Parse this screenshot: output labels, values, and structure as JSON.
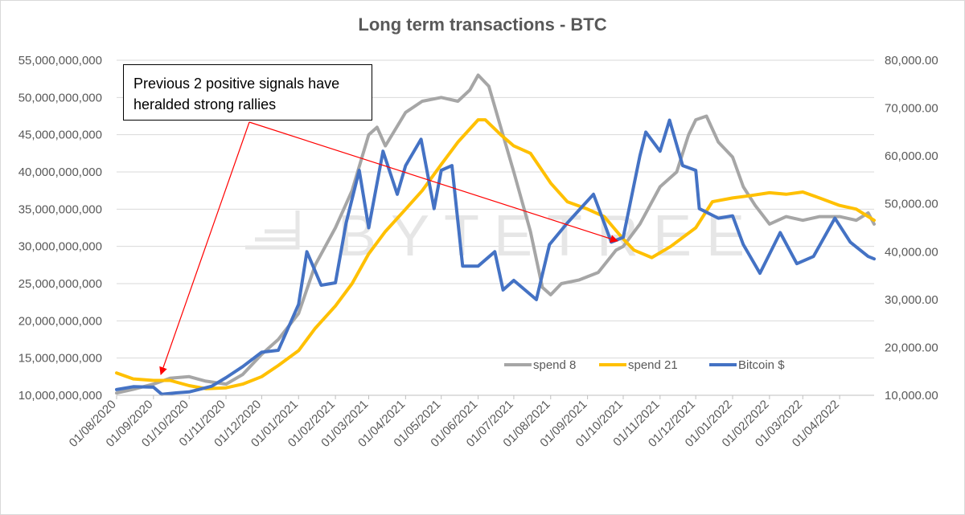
{
  "chart_data": {
    "type": "line",
    "title": "Long term transactions - BTC",
    "watermark": "BYTETREE",
    "annotation": "Previous 2 positive signals have heralded strong rallies",
    "y_left": {
      "ylim": [
        10000000000,
        55000000000
      ],
      "ticks": [
        "10,000,000,000",
        "15,000,000,000",
        "20,000,000,000",
        "25,000,000,000",
        "30,000,000,000",
        "35,000,000,000",
        "40,000,000,000",
        "45,000,000,000",
        "50,000,000,000",
        "55,000,000,000"
      ]
    },
    "y_right": {
      "ylim": [
        10000,
        80000
      ],
      "ticks": [
        "10,000.00",
        "20,000.00",
        "30,000.00",
        "40,000.00",
        "50,000.00",
        "60,000.00",
        "70,000.00",
        "80,000.00"
      ]
    },
    "x": {
      "range": [
        "2020-08-01",
        "2022-04-30"
      ],
      "ticks": [
        "01/08/2020",
        "01/09/2020",
        "01/10/2020",
        "01/11/2020",
        "01/12/2020",
        "01/01/2021",
        "01/02/2021",
        "01/03/2021",
        "01/04/2021",
        "01/05/2021",
        "01/06/2021",
        "01/07/2021",
        "01/08/2021",
        "01/09/2021",
        "01/10/2021",
        "01/11/2021",
        "01/12/2021",
        "01/01/2022",
        "01/02/2022",
        "01/03/2022",
        "01/04/2022"
      ]
    },
    "series": [
      {
        "name": "spend 8",
        "color": "#a6a6a6",
        "axis": "left",
        "points": [
          [
            "2020-08-01",
            10300000000.0
          ],
          [
            "2020-08-15",
            10800000000.0
          ],
          [
            "2020-09-01",
            11500000000.0
          ],
          [
            "2020-09-15",
            12300000000.0
          ],
          [
            "2020-10-01",
            12500000000.0
          ],
          [
            "2020-10-15",
            11900000000.0
          ],
          [
            "2020-11-01",
            11500000000.0
          ],
          [
            "2020-11-15",
            12800000000.0
          ],
          [
            "2020-12-01",
            15500000000.0
          ],
          [
            "2020-12-15",
            17500000000.0
          ],
          [
            "2021-01-01",
            21000000000.0
          ],
          [
            "2021-01-15",
            27500000000.0
          ],
          [
            "2021-02-01",
            32500000000.0
          ],
          [
            "2021-02-15",
            37500000000.0
          ],
          [
            "2021-03-01",
            45000000000.0
          ],
          [
            "2021-03-08",
            46000000000.0
          ],
          [
            "2021-03-15",
            43500000000.0
          ],
          [
            "2021-04-01",
            48000000000.0
          ],
          [
            "2021-04-15",
            49500000000.0
          ],
          [
            "2021-05-01",
            50000000000.0
          ],
          [
            "2021-05-15",
            49500000000.0
          ],
          [
            "2021-05-25",
            51000000000.0
          ],
          [
            "2021-06-01",
            53000000000.0
          ],
          [
            "2021-06-10",
            51500000000.0
          ],
          [
            "2021-06-20",
            46000000000.0
          ],
          [
            "2021-07-01",
            40000000000.0
          ],
          [
            "2021-07-15",
            32000000000.0
          ],
          [
            "2021-07-25",
            24500000000.0
          ],
          [
            "2021-08-01",
            23500000000.0
          ],
          [
            "2021-08-10",
            25000000000.0
          ],
          [
            "2021-08-25",
            25500000000.0
          ],
          [
            "2021-09-10",
            26500000000.0
          ],
          [
            "2021-09-25",
            29500000000.0
          ],
          [
            "2021-10-01",
            30000000000.0
          ],
          [
            "2021-10-15",
            33000000000.0
          ],
          [
            "2021-11-01",
            38000000000.0
          ],
          [
            "2021-11-15",
            40000000000.0
          ],
          [
            "2021-11-25",
            45000000000.0
          ],
          [
            "2021-12-01",
            47000000000.0
          ],
          [
            "2021-12-10",
            47500000000.0
          ],
          [
            "2021-12-20",
            44000000000.0
          ],
          [
            "2022-01-01",
            42000000000.0
          ],
          [
            "2022-01-10",
            38000000000.0
          ],
          [
            "2022-01-20",
            35500000000.0
          ],
          [
            "2022-02-01",
            33000000000.0
          ],
          [
            "2022-02-15",
            34000000000.0
          ],
          [
            "2022-03-01",
            33500000000.0
          ],
          [
            "2022-03-15",
            34000000000.0
          ],
          [
            "2022-04-01",
            34000000000.0
          ],
          [
            "2022-04-15",
            33500000000.0
          ],
          [
            "2022-04-25",
            34500000000.0
          ],
          [
            "2022-04-30",
            33000000000.0
          ]
        ]
      },
      {
        "name": "spend 21",
        "color": "#ffc000",
        "axis": "left",
        "points": [
          [
            "2020-08-01",
            13000000000.0
          ],
          [
            "2020-08-15",
            12200000000.0
          ],
          [
            "2020-09-01",
            12000000000.0
          ],
          [
            "2020-09-15",
            12000000000.0
          ],
          [
            "2020-10-01",
            11300000000.0
          ],
          [
            "2020-10-15",
            10900000000.0
          ],
          [
            "2020-11-01",
            11000000000.0
          ],
          [
            "2020-11-15",
            11500000000.0
          ],
          [
            "2020-12-01",
            12500000000.0
          ],
          [
            "2020-12-15",
            14000000000.0
          ],
          [
            "2021-01-01",
            16000000000.0
          ],
          [
            "2021-01-15",
            19000000000.0
          ],
          [
            "2021-02-01",
            22000000000.0
          ],
          [
            "2021-02-15",
            25000000000.0
          ],
          [
            "2021-03-01",
            29000000000.0
          ],
          [
            "2021-03-15",
            32000000000.0
          ],
          [
            "2021-04-01",
            35000000000.0
          ],
          [
            "2021-04-15",
            37500000000.0
          ],
          [
            "2021-05-01",
            41000000000.0
          ],
          [
            "2021-05-15",
            44000000000.0
          ],
          [
            "2021-06-01",
            47000000000.0
          ],
          [
            "2021-06-07",
            47000000000.0
          ],
          [
            "2021-06-20",
            45000000000.0
          ],
          [
            "2021-07-01",
            43500000000.0
          ],
          [
            "2021-07-15",
            42500000000.0
          ],
          [
            "2021-08-01",
            38500000000.0
          ],
          [
            "2021-08-15",
            36000000000.0
          ],
          [
            "2021-09-01",
            35000000000.0
          ],
          [
            "2021-09-15",
            34000000000.0
          ],
          [
            "2021-10-01",
            31000000000.0
          ],
          [
            "2021-10-10",
            29500000000.0
          ],
          [
            "2021-10-25",
            28500000000.0
          ],
          [
            "2021-11-10",
            30000000000.0
          ],
          [
            "2021-12-01",
            32500000000.0
          ],
          [
            "2021-12-15",
            36000000000.0
          ],
          [
            "2022-01-01",
            36500000000.0
          ],
          [
            "2022-01-15",
            36800000000.0
          ],
          [
            "2022-02-01",
            37200000000.0
          ],
          [
            "2022-02-15",
            37000000000.0
          ],
          [
            "2022-03-01",
            37300000000.0
          ],
          [
            "2022-03-15",
            36500000000.0
          ],
          [
            "2022-04-01",
            35500000000.0
          ],
          [
            "2022-04-15",
            35000000000.0
          ],
          [
            "2022-04-30",
            33500000000.0
          ]
        ]
      },
      {
        "name": "Bitcoin $",
        "color": "#4472c4",
        "axis": "right",
        "points": [
          [
            "2020-08-01",
            11200
          ],
          [
            "2020-08-15",
            11800
          ],
          [
            "2020-09-01",
            11700
          ],
          [
            "2020-09-08",
            10200
          ],
          [
            "2020-09-20",
            10500
          ],
          [
            "2020-10-01",
            10700
          ],
          [
            "2020-10-20",
            11900
          ],
          [
            "2020-11-01",
            13700
          ],
          [
            "2020-11-15",
            16000
          ],
          [
            "2020-12-01",
            19000
          ],
          [
            "2020-12-15",
            19400
          ],
          [
            "2021-01-01",
            29000
          ],
          [
            "2021-01-08",
            40000
          ],
          [
            "2021-01-20",
            33000
          ],
          [
            "2021-02-01",
            33500
          ],
          [
            "2021-02-10",
            46000
          ],
          [
            "2021-02-21",
            57000
          ],
          [
            "2021-03-01",
            45000
          ],
          [
            "2021-03-13",
            61000
          ],
          [
            "2021-03-25",
            52000
          ],
          [
            "2021-04-01",
            58000
          ],
          [
            "2021-04-14",
            63500
          ],
          [
            "2021-04-25",
            49000
          ],
          [
            "2021-05-01",
            57000
          ],
          [
            "2021-05-10",
            58000
          ],
          [
            "2021-05-19",
            37000
          ],
          [
            "2021-06-01",
            37000
          ],
          [
            "2021-06-15",
            40000
          ],
          [
            "2021-06-22",
            32000
          ],
          [
            "2021-07-01",
            34000
          ],
          [
            "2021-07-20",
            30000
          ],
          [
            "2021-07-31",
            41500
          ],
          [
            "2021-08-15",
            46000
          ],
          [
            "2021-09-06",
            52000
          ],
          [
            "2021-09-21",
            42000
          ],
          [
            "2021-10-01",
            43000
          ],
          [
            "2021-10-15",
            60000
          ],
          [
            "2021-10-20",
            65000
          ],
          [
            "2021-11-01",
            61000
          ],
          [
            "2021-11-09",
            67500
          ],
          [
            "2021-11-20",
            58000
          ],
          [
            "2021-12-01",
            57000
          ],
          [
            "2021-12-04",
            49000
          ],
          [
            "2021-12-20",
            47000
          ],
          [
            "2022-01-01",
            47500
          ],
          [
            "2022-01-10",
            41500
          ],
          [
            "2022-01-24",
            35500
          ],
          [
            "2022-02-10",
            44000
          ],
          [
            "2022-02-24",
            37500
          ],
          [
            "2022-03-10",
            39000
          ],
          [
            "2022-03-28",
            47000
          ],
          [
            "2022-04-10",
            42000
          ],
          [
            "2022-04-25",
            39000
          ],
          [
            "2022-04-30",
            38500
          ]
        ]
      }
    ]
  }
}
